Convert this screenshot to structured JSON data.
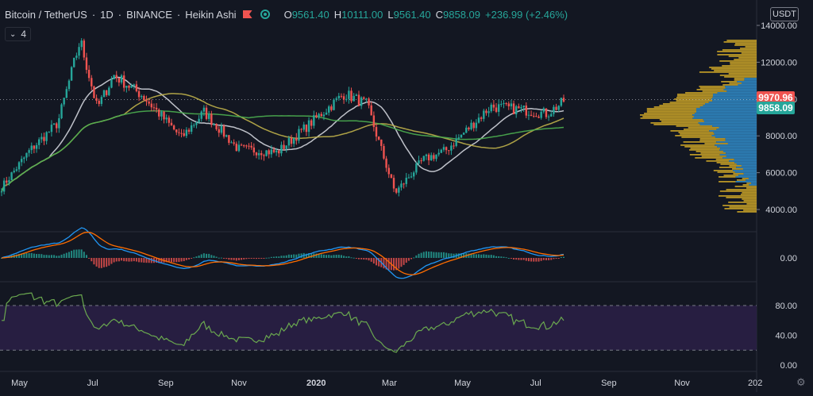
{
  "legend": {
    "symbol": "Bitcoin / TetherUS",
    "interval": "1D",
    "exchange": "BINANCE",
    "chart_style": "Heikin Ashi",
    "open_label": "O",
    "open": "9561.40",
    "high_label": "H",
    "high": "10111.00",
    "low_label": "L",
    "low": "9561.40",
    "close_label": "C",
    "close": "9858.09",
    "change": "+236.99 (+2.46%)"
  },
  "indicators_collapse": {
    "count": "4"
  },
  "currency_button": "USDT",
  "price_tags": [
    {
      "text": "9970.96",
      "value": 9970.96,
      "color": "#ef5350"
    },
    {
      "text": "9858.09",
      "value": 9858.09,
      "color": "#26a69a"
    }
  ],
  "colors": {
    "background": "#131722",
    "up": "#26a69a",
    "down": "#ef5350",
    "volume_profile": "#c9a227",
    "volume_profile_value_area": "#2e86c1",
    "ma_fast": "#d1d4dc",
    "ma_mid": "#c0b14a",
    "ma_slow": "#4caf50",
    "macd": "#2196f3",
    "signal": "#ff6d00",
    "rsi": "#6aa84f",
    "rsi_band": "#2a1f45"
  },
  "chart_data": [
    {
      "type": "candlestick",
      "title": "",
      "y_axis_ticks": [
        "14000.00",
        "12000.00",
        "10000.00",
        "8000.00",
        "6000.00",
        "4000.00"
      ],
      "ylim": [
        3700,
        14300
      ],
      "x_axis_ticks": [
        "May",
        "Jul",
        "Sep",
        "Nov",
        "2020",
        "Mar",
        "May",
        "Jul",
        "Sep",
        "Nov",
        "202"
      ],
      "price_anchors": {
        "x_fraction_of_time": [
          0,
          0.05,
          0.1,
          0.14,
          0.17,
          0.2,
          0.25,
          0.32,
          0.36,
          0.42,
          0.49,
          0.55,
          0.61,
          0.65,
          0.7,
          0.75,
          0.79,
          0.87,
          0.9,
          0.93,
          0.97,
          1.0
        ],
        "close": [
          5200,
          7200,
          8700,
          13200,
          9500,
          11300,
          10200,
          7900,
          9300,
          7300,
          7100,
          8700,
          10300,
          9700,
          4900,
          6700,
          7200,
          9600,
          9500,
          9400,
          9200,
          9858
        ]
      },
      "moving_averages": [
        "fast (white)",
        "mid (yellow)",
        "slow (green)"
      ],
      "last_close": 9858.09,
      "last_price_line": 9970.96,
      "grid": false
    },
    {
      "type": "bar",
      "title": "",
      "y_axis_ticks": [
        "0.00"
      ],
      "series": [
        "histogram",
        "MACD",
        "Signal"
      ],
      "ylim": [
        -1200,
        1000
      ]
    },
    {
      "type": "line",
      "title": "",
      "y_axis_ticks": [
        "80.00",
        "40.00",
        "0.00"
      ],
      "ylim": [
        0,
        100
      ],
      "bands": [
        20,
        80
      ],
      "series": [
        "RSI"
      ]
    }
  ]
}
